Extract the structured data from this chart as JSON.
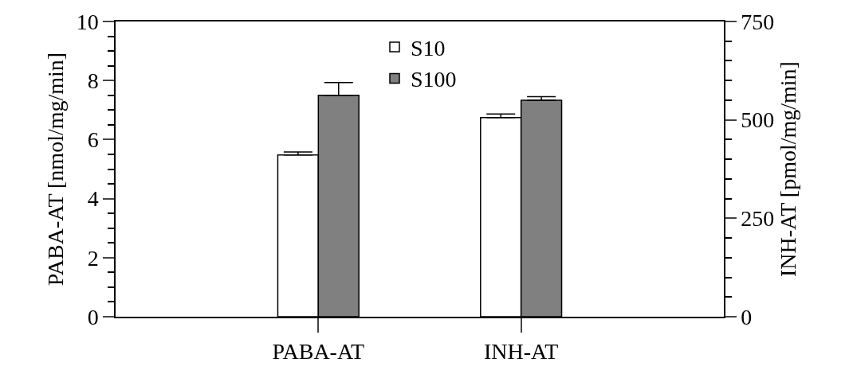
{
  "chart_data": {
    "type": "bar",
    "categories": [
      "PABA-AT",
      "INH-AT"
    ],
    "ylabel": "PABA-AT [nmol/mg/min]",
    "y2label": "INH-AT [pmol/mg/min]",
    "ylim": [
      0,
      10
    ],
    "yticks": [
      0,
      {
        "value": 0.5,
        "label": null
      },
      {
        "value": 1,
        "label": null
      },
      {
        "value": 1.5,
        "label": null
      },
      2,
      {
        "value": 2.5,
        "label": null
      },
      {
        "value": 3,
        "label": null
      },
      {
        "value": 3.5,
        "label": null
      },
      4,
      {
        "value": 4.5,
        "label": null
      },
      {
        "value": 5,
        "label": null
      },
      {
        "value": 5.5,
        "label": null
      },
      6,
      {
        "value": 6.5,
        "label": null
      },
      {
        "value": 7,
        "label": null
      },
      {
        "value": 7.5,
        "label": null
      },
      8,
      {
        "value": 8.5,
        "label": null
      },
      {
        "value": 9,
        "label": null
      },
      {
        "value": 9.5,
        "label": null
      },
      10
    ],
    "y2lim": [
      0,
      750
    ],
    "y2ticks": [
      0,
      {
        "value": 50,
        "label": null
      },
      {
        "value": 100,
        "label": null
      },
      {
        "value": 150,
        "label": null
      },
      {
        "value": 200,
        "label": null
      },
      250,
      {
        "value": 300,
        "label": null
      },
      {
        "value": 350,
        "label": null
      },
      {
        "value": 400,
        "label": null
      },
      {
        "value": 450,
        "label": null
      },
      500,
      {
        "value": 550,
        "label": null
      },
      {
        "value": 600,
        "label": null
      },
      {
        "value": 650,
        "label": null
      },
      {
        "value": 700,
        "label": null
      },
      750
    ],
    "series": [
      {
        "name": "S10",
        "color": "#ffffff",
        "values": [
          5.48,
          null
        ],
        "errors": [
          0.1,
          null
        ]
      },
      {
        "name": "S100",
        "color": "#808080",
        "values": [
          7.5,
          null
        ],
        "errors": [
          0.43,
          null
        ]
      },
      {
        "color": "#ffffff",
        "values": [
          null,
          506
        ],
        "errors": [
          null,
          9
        ],
        "axis": "y2"
      },
      {
        "color": "#808080",
        "values": [
          null,
          550
        ],
        "errors": [
          null,
          9
        ],
        "axis": "y2"
      }
    ],
    "legend": "top"
  }
}
